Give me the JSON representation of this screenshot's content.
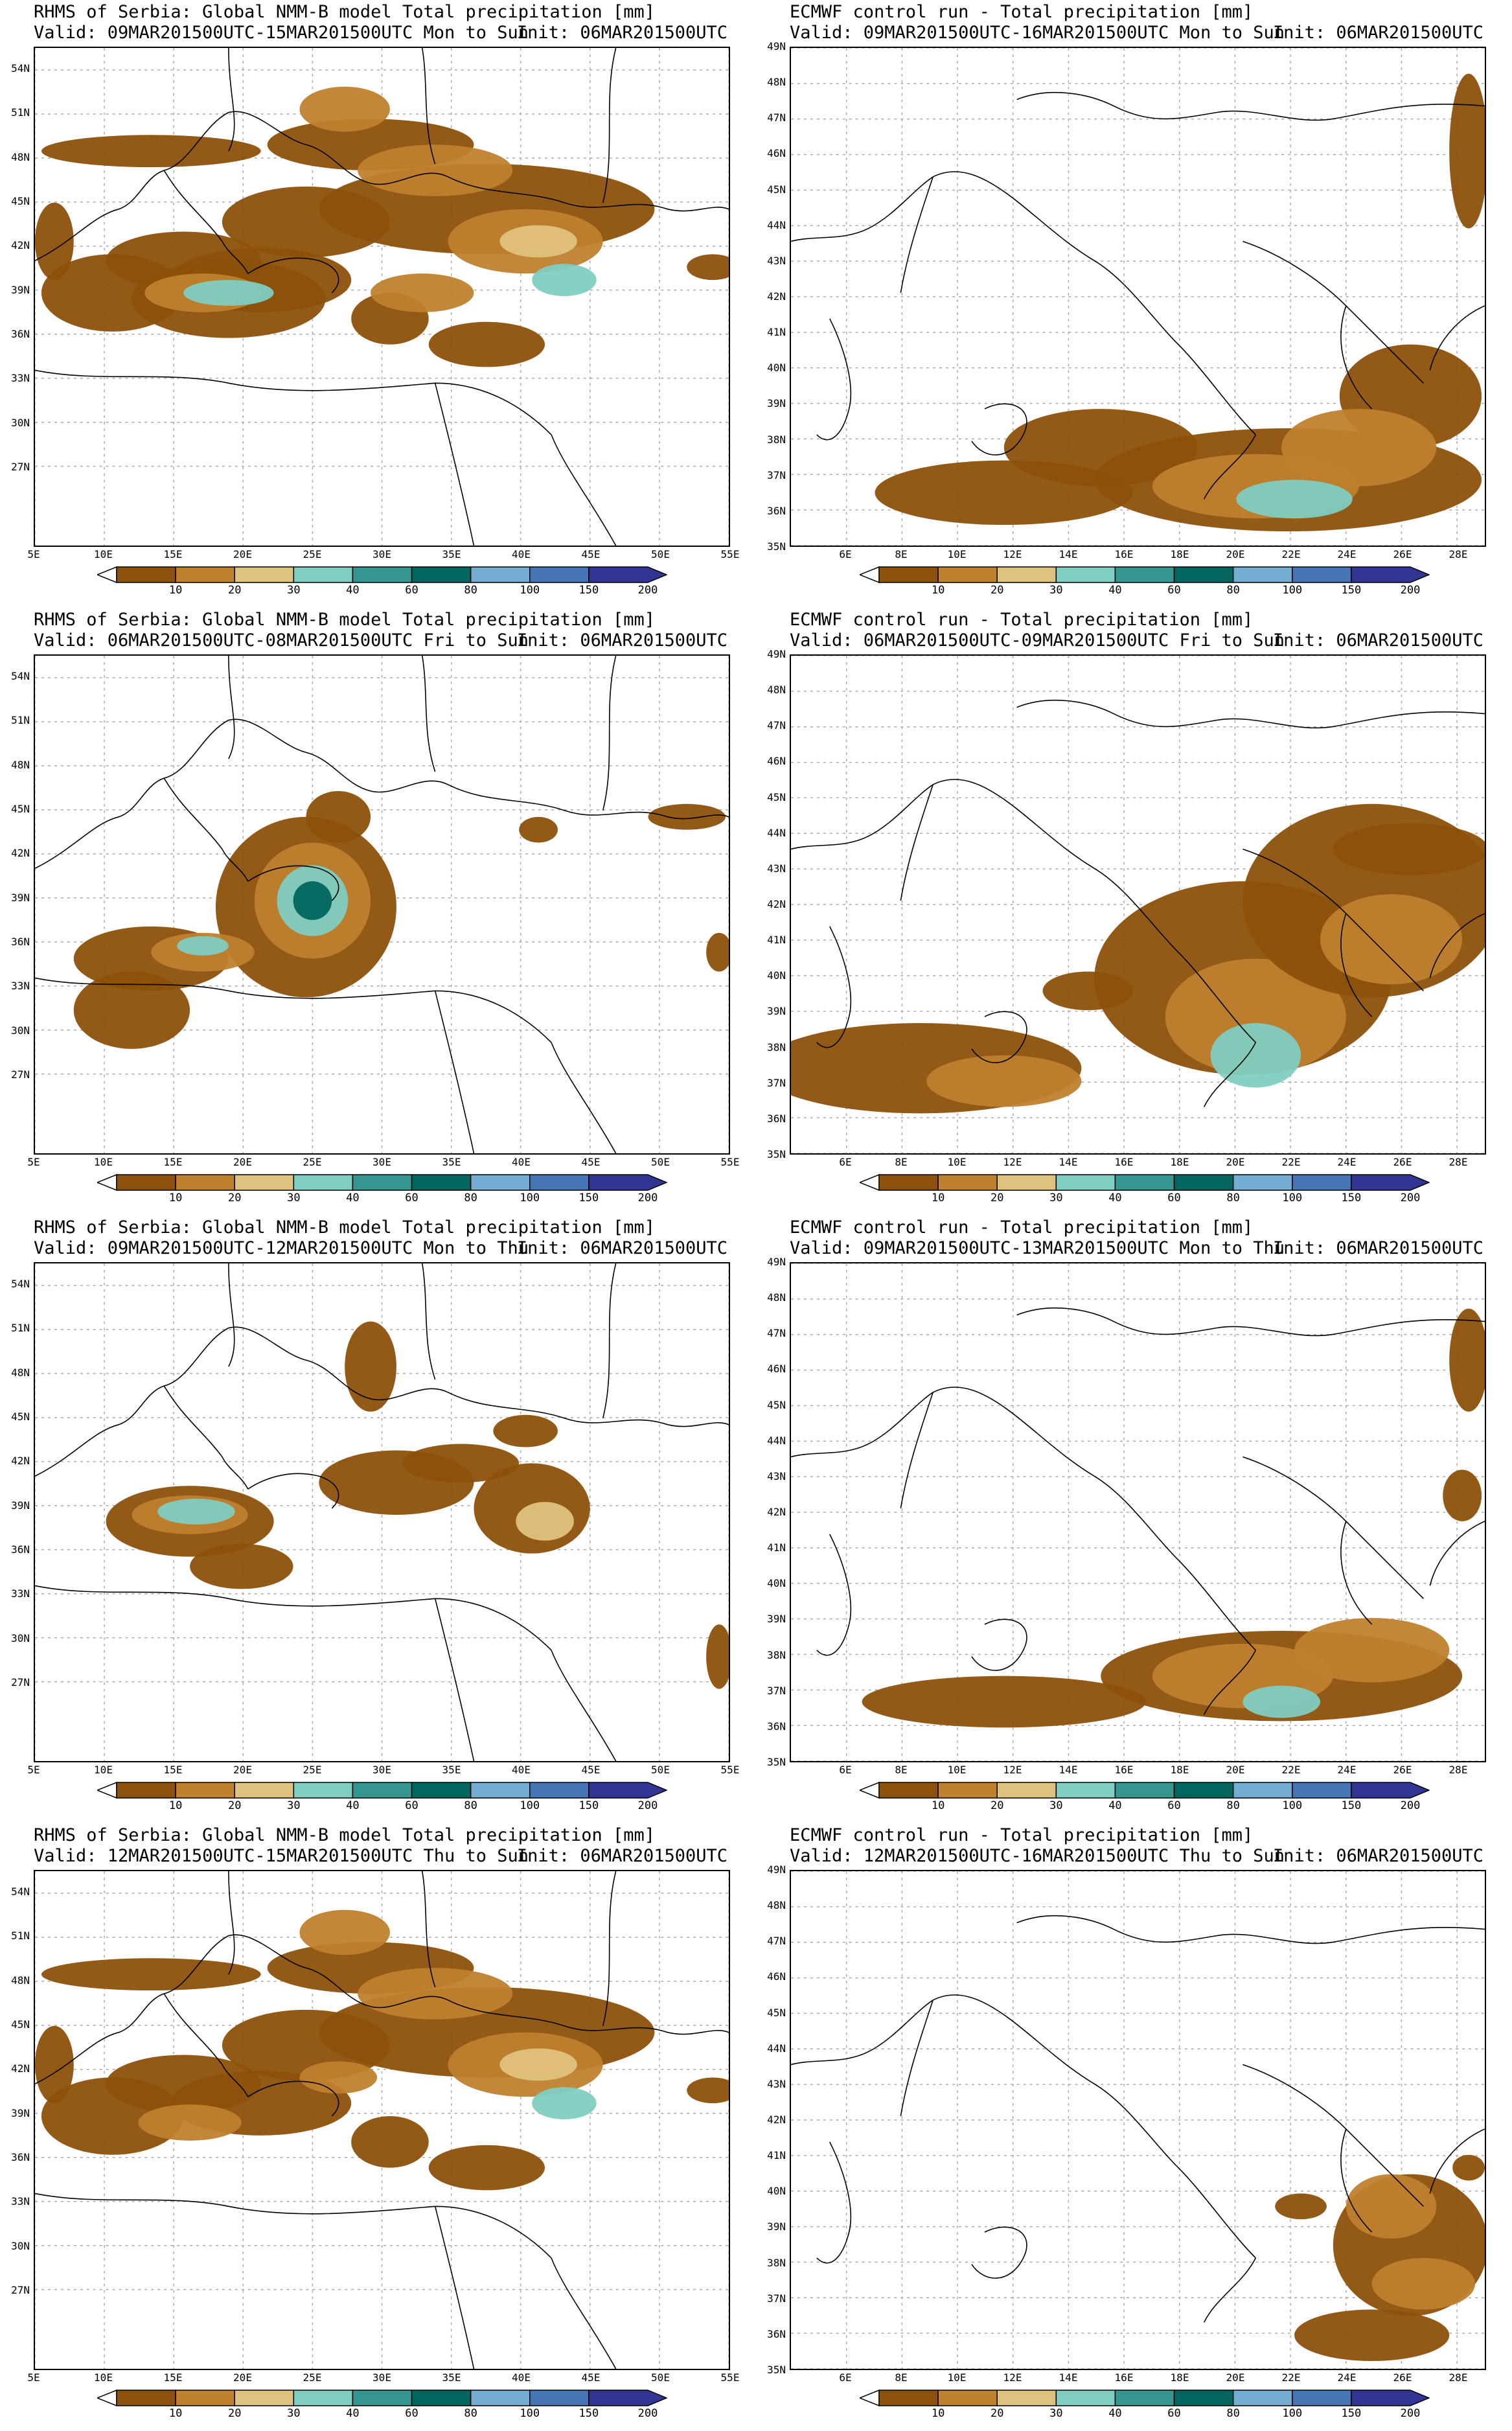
{
  "colorbar": {
    "labels": [
      "10",
      "20",
      "30",
      "40",
      "60",
      "80",
      "100",
      "150",
      "200"
    ],
    "colors": [
      "#8c510a",
      "#bf812d",
      "#dfc27d",
      "#80cdc1",
      "#35978f",
      "#01665e",
      "#74add1",
      "#4575b4",
      "#313695"
    ],
    "under_color": "#ffffff"
  },
  "nmmb_axes": {
    "lat_labels": [
      "54N",
      "51N",
      "48N",
      "45N",
      "42N",
      "39N",
      "36N",
      "33N",
      "30N",
      "27N"
    ],
    "lon_labels": [
      "5E",
      "10E",
      "15E",
      "20E",
      "25E",
      "30E",
      "35E",
      "40E",
      "45E",
      "50E",
      "55E"
    ]
  },
  "ecmwf_axes": {
    "lat_labels": [
      "49N",
      "48N",
      "47N",
      "46N",
      "45N",
      "44N",
      "43N",
      "42N",
      "41N",
      "40N",
      "39N",
      "38N",
      "37N",
      "36N",
      "35N"
    ],
    "lon_labels": [
      "6E",
      "8E",
      "10E",
      "12E",
      "14E",
      "16E",
      "18E",
      "20E",
      "22E",
      "24E",
      "26E",
      "28E"
    ]
  },
  "panels": [
    {
      "title": "RHMS of Serbia: Global NMM-B model Total precipitation [mm]",
      "valid": "Valid: 09MAR201500UTC-15MAR201500UTC Mon to Sun",
      "init": "Init: 06MAR201500UTC",
      "model": "nmmb",
      "id": "p1"
    },
    {
      "title": "ECMWF control run - Total precipitation [mm]",
      "valid": "Valid: 09MAR201500UTC-16MAR201500UTC Mon to Sun",
      "init": "Init: 06MAR201500UTC",
      "model": "ecmwf",
      "id": "p2"
    },
    {
      "title": "RHMS of Serbia: Global NMM-B model Total precipitation [mm]",
      "valid": "Valid: 06MAR201500UTC-08MAR201500UTC Fri to Sun",
      "init": "Init: 06MAR201500UTC",
      "model": "nmmb",
      "id": "p3"
    },
    {
      "title": "ECMWF control run - Total precipitation [mm]",
      "valid": "Valid: 06MAR201500UTC-09MAR201500UTC Fri to Sun",
      "init": "Init: 06MAR201500UTC",
      "model": "ecmwf",
      "id": "p4"
    },
    {
      "title": "RHMS of Serbia: Global NMM-B model Total precipitation [mm]",
      "valid": "Valid: 09MAR201500UTC-12MAR201500UTC Mon to Thu",
      "init": "Init: 06MAR201500UTC",
      "model": "nmmb",
      "id": "p5"
    },
    {
      "title": "ECMWF control run - Total precipitation [mm]",
      "valid": "Valid: 09MAR201500UTC-13MAR201500UTC Mon to Thu",
      "init": "Init: 06MAR201500UTC",
      "model": "ecmwf",
      "id": "p6"
    },
    {
      "title": "RHMS of Serbia: Global NMM-B model Total precipitation [mm]",
      "valid": "Valid: 12MAR201500UTC-15MAR201500UTC Thu to Sun",
      "init": "Init: 06MAR201500UTC",
      "model": "nmmb",
      "id": "p7"
    },
    {
      "title": "ECMWF control run - Total precipitation [mm]",
      "valid": "Valid: 12MAR201500UTC-16MAR201500UTC Thu to Sun",
      "init": "Init: 06MAR201500UTC",
      "model": "ecmwf",
      "id": "p8"
    }
  ]
}
